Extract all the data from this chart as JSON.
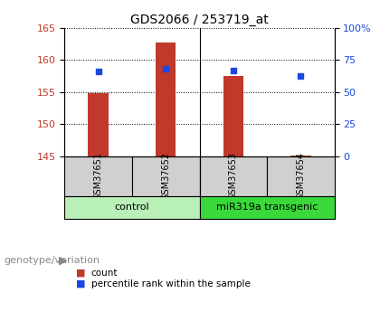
{
  "title": "GDS2066 / 253719_at",
  "samples": [
    "GSM37651",
    "GSM37652",
    "GSM37653",
    "GSM37654"
  ],
  "count_values": [
    154.9,
    162.7,
    157.5,
    145.1
  ],
  "percentile_values": [
    66,
    68,
    67,
    63
  ],
  "ylim_left": [
    145,
    165
  ],
  "ylim_right": [
    0,
    100
  ],
  "yticks_left": [
    145,
    150,
    155,
    160,
    165
  ],
  "yticks_right": [
    0,
    25,
    50,
    75,
    100
  ],
  "ytick_labels_right": [
    "0",
    "25",
    "50",
    "75",
    "100%"
  ],
  "bar_color": "#c0392b",
  "dot_color": "#1a47e0",
  "bar_bottom": 145,
  "groups": [
    {
      "label": "control",
      "indices": [
        0,
        1
      ],
      "color": "#b8f0b8"
    },
    {
      "label": "miR319a transgenic",
      "indices": [
        2,
        3
      ],
      "color": "#3ad83a"
    }
  ],
  "genotype_label": "genotype/variation",
  "legend_items": [
    {
      "label": "count",
      "color": "#c0392b"
    },
    {
      "label": "percentile rank within the sample",
      "color": "#1a47e0"
    }
  ],
  "bg_color": "#ffffff",
  "plot_bg_color": "#ffffff",
  "title_fontsize": 10,
  "tick_fontsize": 8,
  "label_fontsize": 8,
  "sample_fontsize": 7,
  "group_fontsize": 8,
  "legend_fontsize": 7.5,
  "genotype_fontsize": 8
}
